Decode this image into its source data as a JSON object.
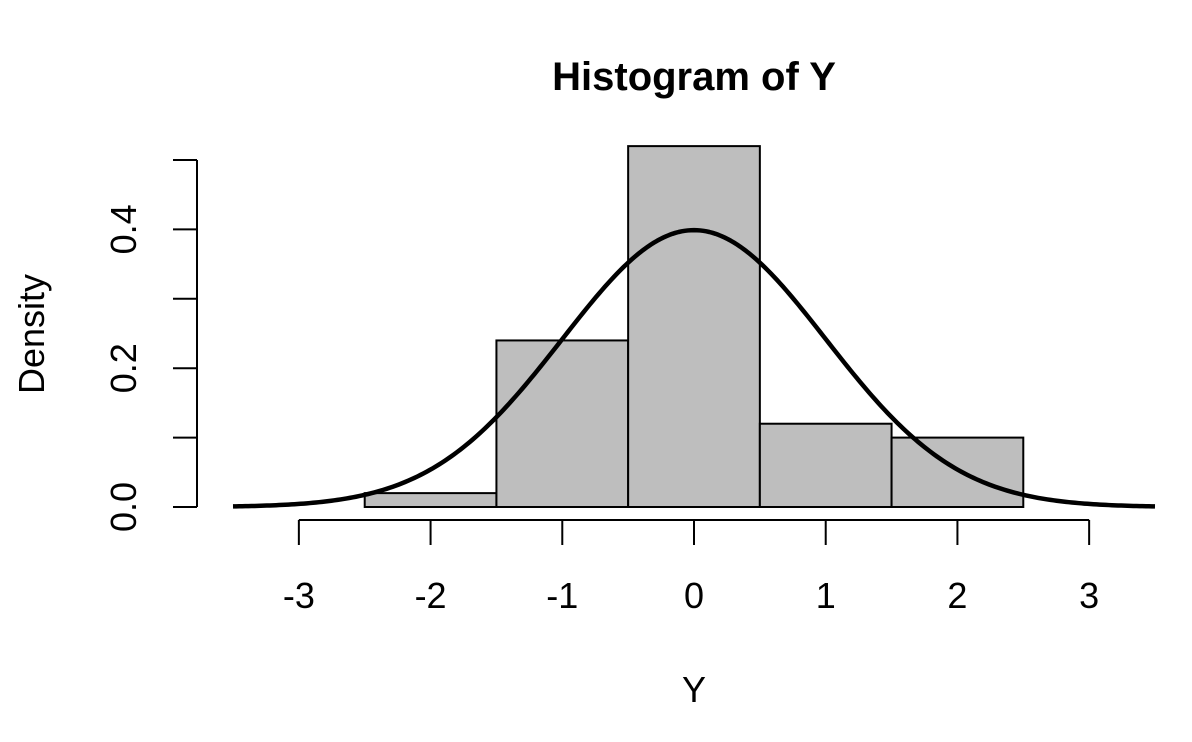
{
  "chart_data": {
    "type": "bar",
    "title": "Histogram of Y",
    "xlabel": "Y",
    "ylabel": "Density",
    "bins": [
      {
        "start": -2.5,
        "end": -1.5,
        "density": 0.02
      },
      {
        "start": -1.5,
        "end": -0.5,
        "density": 0.24
      },
      {
        "start": -0.5,
        "end": 0.5,
        "density": 0.52
      },
      {
        "start": 0.5,
        "end": 1.5,
        "density": 0.12
      },
      {
        "start": 1.5,
        "end": 2.5,
        "density": 0.1
      }
    ],
    "curve": {
      "name": "",
      "type": "line",
      "distribution": "normal",
      "mean": 0,
      "sd": 1
    },
    "xlim": [
      -3.5,
      3.5
    ],
    "ylim": [
      0,
      0.5
    ],
    "x_ticks": [
      -3,
      -2,
      -1,
      0,
      1,
      2,
      3
    ],
    "x_tick_labels": [
      "-3",
      "-2",
      "-1",
      "0",
      "1",
      "2",
      "3"
    ],
    "y_ticks": [
      0,
      0.1,
      0.2,
      0.3,
      0.4,
      0.5
    ],
    "y_tick_labels": [
      "0.0",
      "",
      "0.2",
      "",
      "0.4",
      ""
    ],
    "grid": false,
    "legend": "none",
    "colors": {
      "bar_fill": "#bebebe",
      "bar_stroke": "#000000",
      "curve": "#000000"
    }
  }
}
